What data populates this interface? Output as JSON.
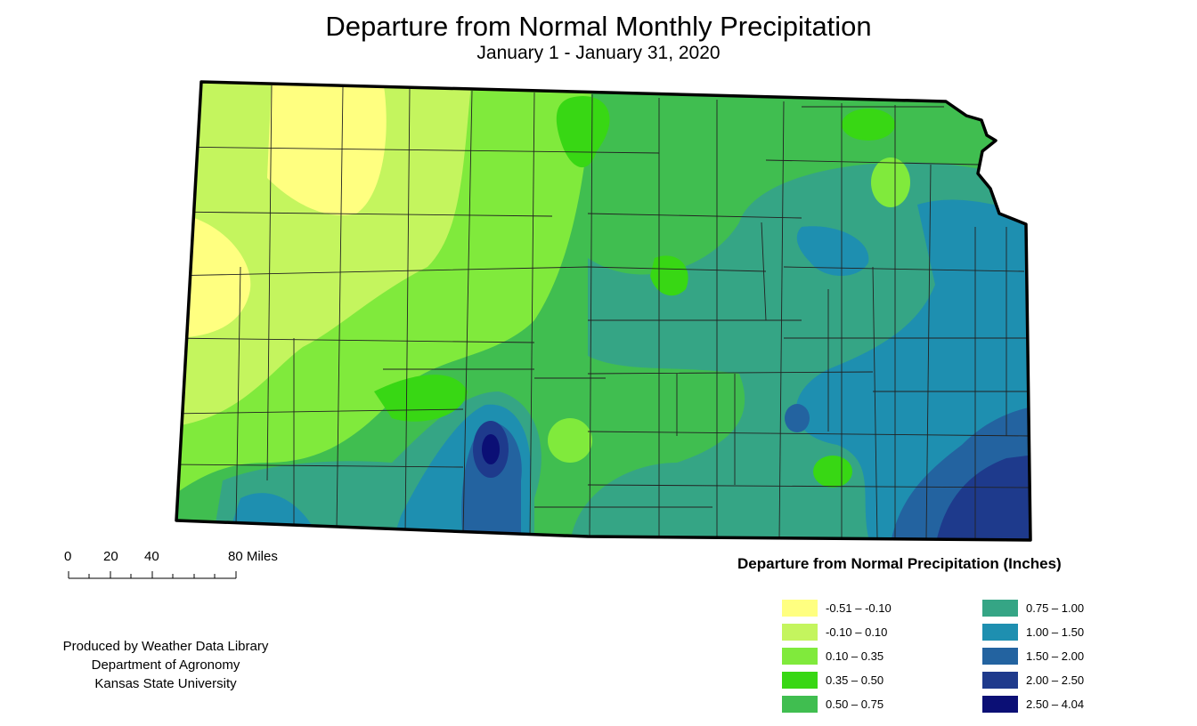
{
  "title": "Departure from Normal Monthly Precipitation",
  "subtitle": "January 1 - January 31, 2020",
  "scale_bar": {
    "ticks": [
      "0",
      "20",
      "40",
      "80 Miles"
    ]
  },
  "legend": {
    "title": "Departure from Normal Precipitation (Inches)",
    "classes": [
      {
        "label": "-0.51 – -0.10",
        "color": "#ffff80"
      },
      {
        "label": "-0.10 – 0.10",
        "color": "#c4f55e"
      },
      {
        "label": "0.10 – 0.35",
        "color": "#80ea3c"
      },
      {
        "label": "0.35 – 0.50",
        "color": "#38d714"
      },
      {
        "label": "0.50 – 0.75",
        "color": "#40be50"
      },
      {
        "label": "0.75 – 1.00",
        "color": "#35a585"
      },
      {
        "label": "1.00 – 1.50",
        "color": "#1e8fb0"
      },
      {
        "label": "1.50 – 2.00",
        "color": "#2363a0"
      },
      {
        "label": "2.00 – 2.50",
        "color": "#1e3a8c"
      },
      {
        "label": "2.50 – 4.04",
        "color": "#0b0f75"
      }
    ]
  },
  "credits": {
    "line1": "Produced by Weather Data Library",
    "line2": "Department of Agronomy",
    "line3": "Kansas State University"
  }
}
